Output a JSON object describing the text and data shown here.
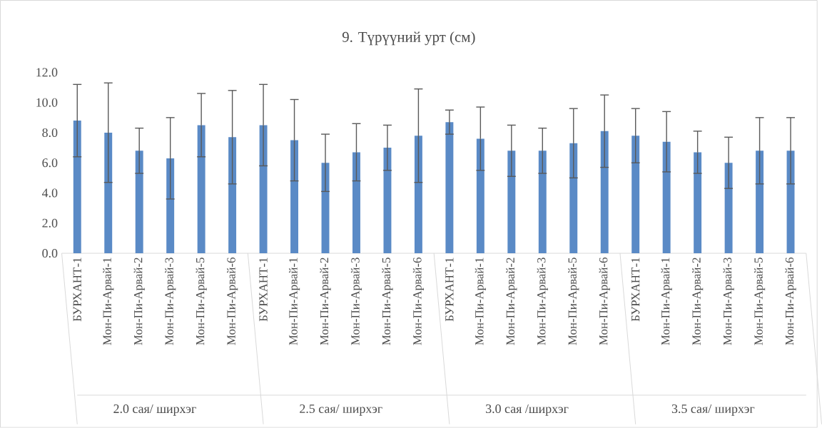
{
  "chart_data": {
    "type": "bar",
    "title": "9. Түрүүний урт  (см)",
    "categories": [
      "БУРХАНТ-1",
      "Мон-Пи-Арвай-1",
      "Мон-Пи-Арвай-2",
      "Мон-Пи-Арвай-3",
      "Мон-Пи-Арвай-5",
      "Мон-Пи-Арвай-6",
      "БУРХАНТ-1",
      "Мон-Пи-Арвай-1",
      "Мон-Пи-Арвай-2",
      "Мон-Пи-Арвай-3",
      "Мон-Пи-Арвай-5",
      "Мон-Пи-Арвай-6",
      "БУРХАНТ-1",
      "Мон-Пи-Арвай-1",
      "Мон-Пи-Арвай-2",
      "Мон-Пи-Арвай-3",
      "Мон-Пи-Арвай-5",
      "Мон-Пи-Арвай-6",
      "БУРХАНТ-1",
      "Мон-Пи-Арвай-1",
      "Мон-Пи-Арвай-2",
      "Мон-Пи-Арвай-3",
      "Мон-Пи-Арвай-5",
      "Мон-Пи-Арвай-6"
    ],
    "values": [
      8.8,
      8.0,
      6.8,
      6.3,
      8.5,
      7.7,
      8.5,
      7.5,
      6.0,
      6.7,
      7.0,
      7.8,
      8.7,
      7.6,
      6.8,
      6.8,
      7.3,
      8.1,
      7.8,
      7.4,
      6.7,
      6.0,
      6.8,
      6.8
    ],
    "errors": [
      2.4,
      3.3,
      1.5,
      2.7,
      2.1,
      3.1,
      2.7,
      2.7,
      1.9,
      1.9,
      1.5,
      3.1,
      0.8,
      2.1,
      1.7,
      1.5,
      2.3,
      2.4,
      1.8,
      2.0,
      1.4,
      1.7,
      2.2,
      2.2
    ],
    "color": "#5a8ac6",
    "ylim": [
      0,
      12
    ],
    "yticks": [
      {
        "value": 0,
        "label": "0.0"
      },
      {
        "value": 2,
        "label": "2.0"
      },
      {
        "value": 4,
        "label": "4.0"
      },
      {
        "value": 6,
        "label": "6.0"
      },
      {
        "value": 8,
        "label": "8.0"
      },
      {
        "value": 10,
        "label": "10.0"
      },
      {
        "value": 12,
        "label": "12.0"
      }
    ],
    "annotations": [
      "2.0 сая/ ширхэг",
      "2.5 сая/ ширхэг",
      "3.0 сая /ширхэг",
      "3.5 сая/ ширхэг"
    ]
  }
}
